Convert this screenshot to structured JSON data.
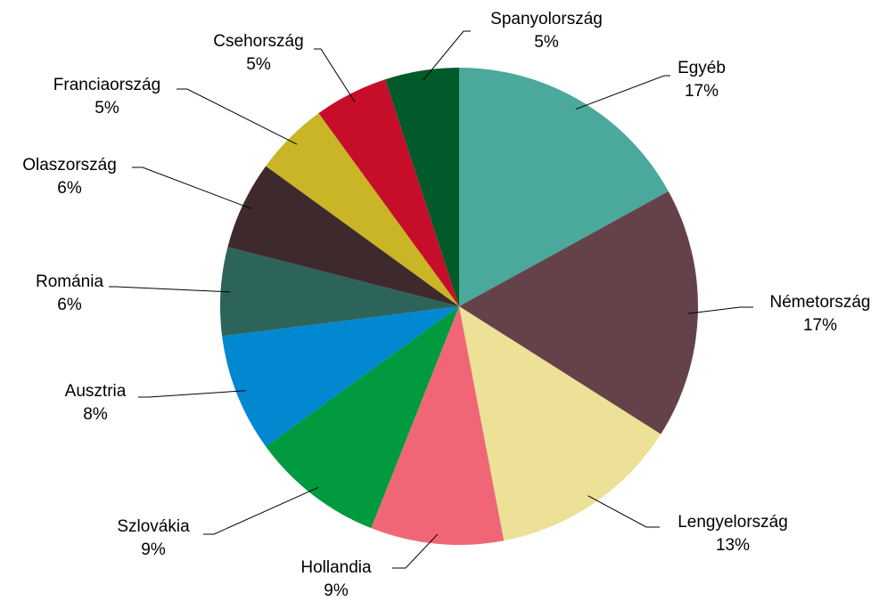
{
  "chart_data": {
    "type": "pie",
    "categories": [
      "Egyéb",
      "Németország",
      "Lengyelország",
      "Hollandia",
      "Szlovákia",
      "Ausztria",
      "Románia",
      "Olaszország",
      "Franciaország",
      "Csehország",
      "Spanyolország"
    ],
    "values": [
      17,
      17,
      13,
      9,
      9,
      8,
      6,
      6,
      5,
      5,
      5
    ],
    "value_labels": [
      "17%",
      "17%",
      "13%",
      "9%",
      "9%",
      "8%",
      "6%",
      "6%",
      "5%",
      "5%",
      "5%"
    ],
    "colors": [
      "#4aa99b",
      "#65424a",
      "#ece196",
      "#f16677",
      "#019a3f",
      "#0287d1",
      "#2c645c",
      "#3e2a2d",
      "#c9b526",
      "#c60e2a",
      "#005a2a"
    ]
  }
}
